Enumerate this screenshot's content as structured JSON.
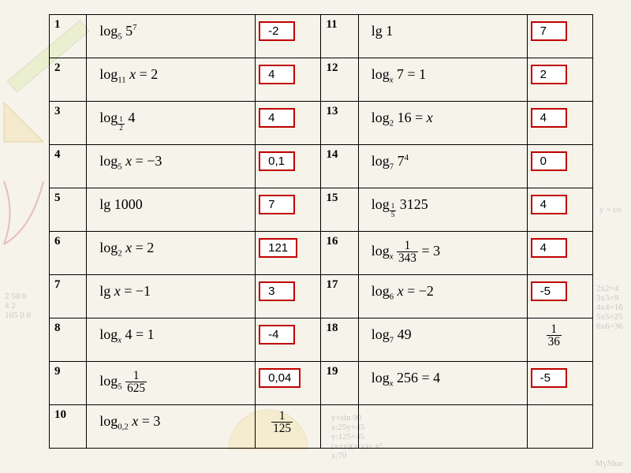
{
  "background_color": "#f5f3ea",
  "answer_box_border": "#c00000",
  "rows": [
    {
      "n1": "1",
      "expr1": "log<span class='sub'>5</span> 5<span class='sup'>7</span>",
      "ans1": "-2",
      "n2": "11",
      "expr2": "lg 1",
      "ans2": "7"
    },
    {
      "n1": "2",
      "expr1": "log<span class='sub'>11</span> <i>x</i> = 2",
      "ans1": "4",
      "n2": "12",
      "expr2": "log<span class='sub'><i>x</i></span> 7 = 1",
      "ans2": "2"
    },
    {
      "n1": "3",
      "expr1": "log<span class='sub'><span class='frac'><span class='n'>1</span><span class='d'>2</span></span></span> 4",
      "ans1": "4",
      "n2": "13",
      "expr2": "log<span class='sub'>2</span> 16 = <i>x</i>",
      "ans2": "4"
    },
    {
      "n1": "4",
      "expr1": "log<span class='sub'>5</span> <i>x</i> = −3",
      "ans1": "0,1",
      "n2": "14",
      "expr2": "log<span class='sub'>7</span> 7<span class='sup'>4</span>",
      "ans2": "0"
    },
    {
      "n1": "5",
      "expr1": "lg 1000",
      "ans1": "7",
      "n2": "15",
      "expr2": "log<span class='sub'><span class='frac'><span class='n'>1</span><span class='d'>5</span></span></span> 3125",
      "ans2": "4"
    },
    {
      "n1": "6",
      "expr1": "log<span class='sub'>2</span> <i>x</i> = 2",
      "ans1": "121",
      "n2": "16",
      "expr2": "log<span class='sub'><i>x</i></span> <span class='frac'><span class='n'>1</span><span class='d'>343</span></span> = 3",
      "ans2": "4"
    },
    {
      "n1": "7",
      "expr1": "lg <i>x</i> = −1",
      "ans1": "3",
      "n2": "17",
      "expr2": "log<span class='sub'>6</span> <i>x</i> = −2",
      "ans2": "-5"
    },
    {
      "n1": "8",
      "expr1": "log<span class='sub'><i>x</i></span> 4 = 1",
      "ans1": "-4",
      "n2": "18",
      "expr2": "log<span class='sub'>7</span> 49",
      "ans2": "<span class='frac'><span class='n'>1</span><span class='d'>36</span></span>",
      "ans2_plain": true
    },
    {
      "n1": "9",
      "expr1": "log<span class='sub'>5</span> <span class='frac'><span class='n'>1</span><span class='d'>625</span></span>",
      "ans1": "0,04",
      "n2": "19",
      "expr2": "log<span class='sub'><i>x</i></span> 256 = 4",
      "ans2": "-5"
    },
    {
      "n1": "10",
      "expr1": "log<span class='sub'>0,2</span> <i>x</i> = 3",
      "ans1": "<span class='frac'><span class='n'>1</span><span class='d'>125</span></span>",
      "ans1_plain": true,
      "n2": "",
      "expr2": "",
      "ans2": ""
    }
  ]
}
